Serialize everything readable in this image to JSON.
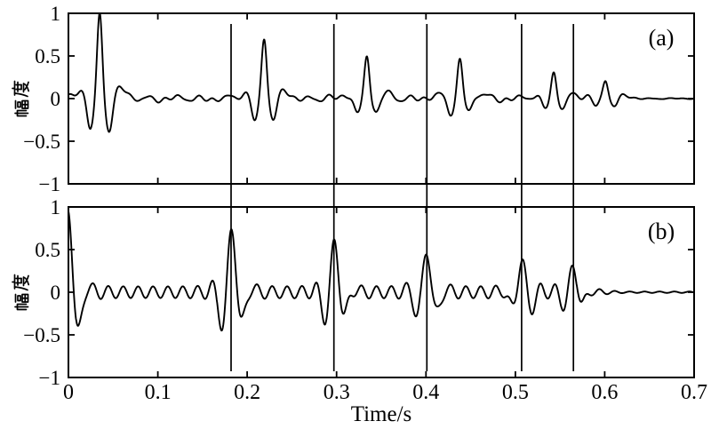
{
  "figure": {
    "background_color": "#ffffff",
    "stroke_color": "#000000",
    "xlabel": "Time/s",
    "xlim": [
      0,
      0.7
    ],
    "xticks": [
      0,
      0.1,
      0.2,
      0.3,
      0.4,
      0.5,
      0.6,
      0.7
    ],
    "xtick_labels": [
      "0",
      "0.1",
      "0.2",
      "0.3",
      "0.4",
      "0.5",
      "0.6",
      "0.7"
    ],
    "event_marker_lines_t": [
      0.182,
      0.297,
      0.401,
      0.507,
      0.565
    ]
  },
  "chart_data": [
    {
      "type": "line",
      "subplot": "a",
      "label": "(a)",
      "ylabel": "幅度",
      "xlim": [
        0,
        0.7
      ],
      "ylim": [
        -1,
        1
      ],
      "yticks": [
        -1,
        -0.5,
        0,
        0.5,
        1
      ],
      "ytick_labels": [
        "−1",
        "−0.5",
        "0",
        "0.5",
        "1"
      ],
      "description": "ECG-like signal: QRS spikes with decreasing amplitude over a small baseline ripple",
      "spikes": [
        {
          "t": 0.035,
          "amp": 1.0
        },
        {
          "t": 0.219,
          "amp": 0.72
        },
        {
          "t": 0.334,
          "amp": 0.52
        },
        {
          "t": 0.438,
          "amp": 0.45
        },
        {
          "t": 0.543,
          "amp": 0.31
        },
        {
          "t": 0.601,
          "amp": 0.23
        }
      ],
      "waveform_model": {
        "shape": "qrs",
        "peak_sigma": 0.004,
        "dip_offset": 0.0105,
        "dip_sigma": 0.0052,
        "dip_coeff": 0.36,
        "pre_bump": 0.09,
        "pre_offset": 0.021,
        "post_bump": 0.12,
        "post_offset": 0.023,
        "bump_sigma": 0.0085,
        "ripple_components": [
          [
            0.022,
            34,
            1.2
          ],
          [
            0.018,
            55,
            2.1
          ],
          [
            0.012,
            76,
            0.4
          ],
          [
            0.008,
            18,
            0.0
          ]
        ],
        "ripple_decay_start": 0.615,
        "ripple_decay_tau": 0.02,
        "ripple_floor": 0.15
      }
    },
    {
      "type": "line",
      "subplot": "b",
      "label": "(b)",
      "ylabel": "幅度",
      "xlim": [
        0,
        0.7
      ],
      "ylim": [
        -1,
        1
      ],
      "yticks": [
        -1,
        -0.5,
        0,
        0.5,
        1
      ],
      "ytick_labels": [
        "−1",
        "−0.5",
        "0",
        "0.5",
        "1"
      ],
      "description": "Wavelet-like spikes aligned with the vertical marker lines over a steady ~60 Hz ripple",
      "spikes": [
        {
          "t": 0.0,
          "amp": 1.0
        },
        {
          "t": 0.183,
          "amp": 0.76
        },
        {
          "t": 0.298,
          "amp": 0.58
        },
        {
          "t": 0.401,
          "amp": 0.5
        },
        {
          "t": 0.507,
          "amp": 0.37
        },
        {
          "t": 0.565,
          "amp": 0.28
        }
      ],
      "waveform_model": {
        "shape": "morlet",
        "freq_hz": 40,
        "sigma": 0.014,
        "ripple_amp": 0.068,
        "ripple_freq_hz": 60,
        "ripple_phase": 3.6,
        "swell_coeff": 0.7,
        "swell_sigma": 0.03,
        "ripple_decay_start": 0.578,
        "ripple_decay_tau": 0.022,
        "ripple_floor": 0.12
      }
    }
  ]
}
